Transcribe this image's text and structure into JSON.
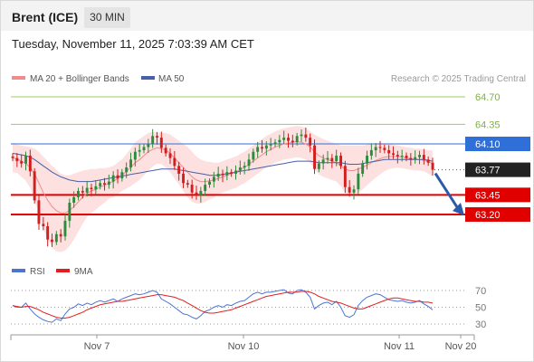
{
  "header": {
    "title": "Brent (ICE)",
    "timeframe": "30 MIN",
    "datetime": "Tuesday, November 11, 2025 7:03:39 AM CET"
  },
  "legend": {
    "ma20_bb": "MA 20 + Bollinger Bands",
    "ma50": "MA 50",
    "copyright": "Research © 2025 Trading Central",
    "rsi": "RSI",
    "rsi_ma": "9MA"
  },
  "colors": {
    "up": "#2e8b3e",
    "down": "#d21e1e",
    "bb_fill": "#fde0e0",
    "ma20": "#f08c8c",
    "ma50": "#4a5fa8",
    "pivot_line": "#2f6fd8",
    "support": "#e00000",
    "resistance": "#9ccc65",
    "last_price": "#222222",
    "rsi": "#4a74d6",
    "rsi_ma": "#e02020",
    "arrow": "#2a5aa8"
  },
  "chart_data": [
    {
      "type": "candlestick",
      "title": "Brent (ICE) 30 MIN",
      "ylim": [
        62.6,
        65.0
      ],
      "last_price": 63.77,
      "levels": [
        {
          "label": "64.70",
          "value": 64.7,
          "kind": "resistance"
        },
        {
          "label": "64.35",
          "value": 64.35,
          "kind": "resistance"
        },
        {
          "label": "64.10",
          "value": 64.1,
          "kind": "pivot"
        },
        {
          "label": "63.77",
          "value": 63.77,
          "kind": "last"
        },
        {
          "label": "63.45",
          "value": 63.45,
          "kind": "support"
        },
        {
          "label": "63.20",
          "value": 63.2,
          "kind": "support"
        }
      ],
      "x_ticks": [
        "Nov 7",
        "Nov 10",
        "Nov 11",
        "Nov 20"
      ],
      "closes": [
        63.92,
        63.88,
        63.85,
        63.95,
        63.75,
        63.38,
        63.08,
        63.05,
        62.88,
        62.85,
        62.95,
        62.92,
        63.12,
        63.35,
        63.42,
        63.5,
        63.48,
        63.54,
        63.52,
        63.56,
        63.6,
        63.58,
        63.62,
        63.7,
        63.66,
        63.74,
        63.8,
        63.9,
        64.0,
        64.02,
        64.06,
        64.1,
        64.2,
        64.18,
        64.05,
        63.98,
        63.92,
        63.82,
        63.72,
        63.6,
        63.58,
        63.48,
        63.44,
        63.5,
        63.58,
        63.62,
        63.68,
        63.72,
        63.7,
        63.74,
        63.72,
        63.76,
        63.8,
        63.82,
        63.9,
        64.0,
        64.06,
        64.04,
        64.08,
        64.1,
        64.12,
        64.15,
        64.18,
        64.14,
        64.12,
        64.2,
        64.22,
        64.18,
        64.08,
        63.78,
        63.85,
        63.9,
        63.92,
        63.88,
        63.95,
        63.82,
        63.55,
        63.48,
        63.52,
        63.72,
        63.85,
        63.95,
        64.02,
        64.06,
        64.05,
        64.02,
        63.98,
        63.96,
        63.94,
        63.95,
        63.92,
        63.9,
        63.93,
        63.96,
        63.9,
        63.86,
        63.77
      ],
      "ma20": [
        63.92,
        63.91,
        63.88,
        63.85,
        63.8,
        63.72,
        63.6,
        63.48,
        63.38,
        63.3,
        63.25,
        63.22,
        63.22,
        63.25,
        63.3,
        63.36,
        63.42,
        63.47,
        63.5,
        63.52,
        63.55,
        63.57,
        63.6,
        63.62,
        63.66,
        63.7,
        63.75,
        63.8,
        63.86,
        63.9,
        63.95,
        64.0,
        64.03,
        64.05,
        64.04,
        64.02,
        63.98,
        63.92,
        63.86,
        63.8,
        63.74,
        63.68,
        63.64,
        63.62,
        63.62,
        63.63,
        63.64,
        63.66,
        63.68,
        63.7,
        63.72,
        63.74,
        63.77,
        63.8,
        63.84,
        63.88,
        63.92,
        63.96,
        64.0,
        64.03,
        64.06,
        64.08,
        64.1,
        64.11,
        64.12,
        64.13,
        64.12,
        64.1,
        64.06,
        64.0,
        63.95,
        63.92,
        63.9,
        63.88,
        63.86,
        63.82,
        63.78,
        63.76,
        63.76,
        63.78,
        63.8,
        63.83,
        63.86,
        63.89,
        63.91,
        63.93,
        63.94,
        63.94,
        63.94,
        63.93,
        63.92,
        63.91,
        63.9,
        63.9,
        63.89,
        63.87,
        63.85
      ],
      "ma50": [
        63.98,
        63.97,
        63.96,
        63.95,
        63.93,
        63.9,
        63.86,
        63.82,
        63.78,
        63.74,
        63.71,
        63.68,
        63.66,
        63.64,
        63.63,
        63.62,
        63.62,
        63.62,
        63.62,
        63.63,
        63.64,
        63.65,
        63.66,
        63.67,
        63.68,
        63.69,
        63.7,
        63.71,
        63.72,
        63.73,
        63.74,
        63.75,
        63.76,
        63.77,
        63.78,
        63.78,
        63.78,
        63.78,
        63.77,
        63.76,
        63.75,
        63.74,
        63.73,
        63.72,
        63.71,
        63.7,
        63.7,
        63.7,
        63.71,
        63.72,
        63.73,
        63.74,
        63.75,
        63.76,
        63.77,
        63.78,
        63.79,
        63.8,
        63.81,
        63.82,
        63.83,
        63.84,
        63.85,
        63.86,
        63.87,
        63.88,
        63.88,
        63.88,
        63.88,
        63.87,
        63.86,
        63.86,
        63.86,
        63.86,
        63.86,
        63.86,
        63.85,
        63.84,
        63.84,
        63.84,
        63.85,
        63.86,
        63.87,
        63.88,
        63.89,
        63.9,
        63.9,
        63.9,
        63.9,
        63.9,
        63.9,
        63.9,
        63.9,
        63.9,
        63.9,
        63.89,
        63.88
      ],
      "bb_halfwidth": [
        0.18,
        0.18,
        0.2,
        0.22,
        0.26,
        0.32,
        0.4,
        0.46,
        0.5,
        0.52,
        0.52,
        0.5,
        0.48,
        0.45,
        0.42,
        0.38,
        0.34,
        0.3,
        0.28,
        0.26,
        0.24,
        0.22,
        0.2,
        0.2,
        0.2,
        0.2,
        0.22,
        0.24,
        0.26,
        0.26,
        0.25,
        0.24,
        0.22,
        0.2,
        0.2,
        0.22,
        0.24,
        0.26,
        0.28,
        0.3,
        0.32,
        0.32,
        0.3,
        0.28,
        0.26,
        0.24,
        0.22,
        0.2,
        0.2,
        0.2,
        0.2,
        0.2,
        0.2,
        0.2,
        0.2,
        0.2,
        0.2,
        0.2,
        0.2,
        0.2,
        0.2,
        0.2,
        0.2,
        0.2,
        0.2,
        0.2,
        0.2,
        0.2,
        0.2,
        0.22,
        0.24,
        0.24,
        0.24,
        0.24,
        0.24,
        0.26,
        0.3,
        0.32,
        0.32,
        0.3,
        0.28,
        0.26,
        0.24,
        0.22,
        0.2,
        0.18,
        0.16,
        0.15,
        0.14,
        0.14,
        0.14,
        0.14,
        0.14,
        0.14,
        0.14,
        0.15,
        0.16
      ],
      "projection": {
        "from": 63.77,
        "to": 63.2
      }
    },
    {
      "type": "line",
      "title": "RSI",
      "ylim": [
        25,
        75
      ],
      "y_ticks": [
        70,
        50,
        30
      ],
      "series": [
        {
          "name": "RSI",
          "values": [
            52,
            50,
            50,
            55,
            48,
            42,
            38,
            35,
            33,
            32,
            36,
            34,
            42,
            48,
            50,
            54,
            52,
            55,
            53,
            56,
            58,
            56,
            58,
            60,
            57,
            60,
            62,
            64,
            66,
            65,
            66,
            68,
            70,
            68,
            60,
            57,
            54,
            50,
            46,
            42,
            41,
            38,
            36,
            40,
            45,
            47,
            50,
            52,
            50,
            53,
            52,
            55,
            57,
            58,
            62,
            66,
            68,
            66,
            68,
            68,
            69,
            70,
            71,
            67,
            66,
            70,
            71,
            68,
            62,
            48,
            52,
            55,
            56,
            53,
            57,
            50,
            40,
            38,
            41,
            52,
            58,
            62,
            64,
            66,
            65,
            62,
            59,
            58,
            57,
            58,
            56,
            55,
            56,
            58,
            54,
            51,
            47
          ]
        },
        {
          "name": "9MA",
          "values": [
            52,
            51,
            50,
            51,
            51,
            49,
            47,
            44,
            42,
            40,
            38,
            37,
            37,
            38,
            40,
            42,
            44,
            47,
            49,
            51,
            53,
            54,
            55,
            56,
            57,
            57,
            58,
            59,
            60,
            61,
            62,
            63,
            64,
            65,
            65,
            64,
            63,
            62,
            60,
            58,
            55,
            52,
            49,
            46,
            44,
            43,
            43,
            44,
            45,
            46,
            47,
            49,
            51,
            53,
            55,
            57,
            59,
            61,
            63,
            64,
            65,
            66,
            67,
            68,
            68,
            68,
            69,
            69,
            68,
            66,
            63,
            61,
            59,
            57,
            56,
            55,
            53,
            51,
            49,
            48,
            48,
            50,
            52,
            54,
            56,
            58,
            60,
            61,
            61,
            60,
            59,
            58,
            57,
            57,
            56,
            56,
            55
          ]
        }
      ]
    }
  ]
}
